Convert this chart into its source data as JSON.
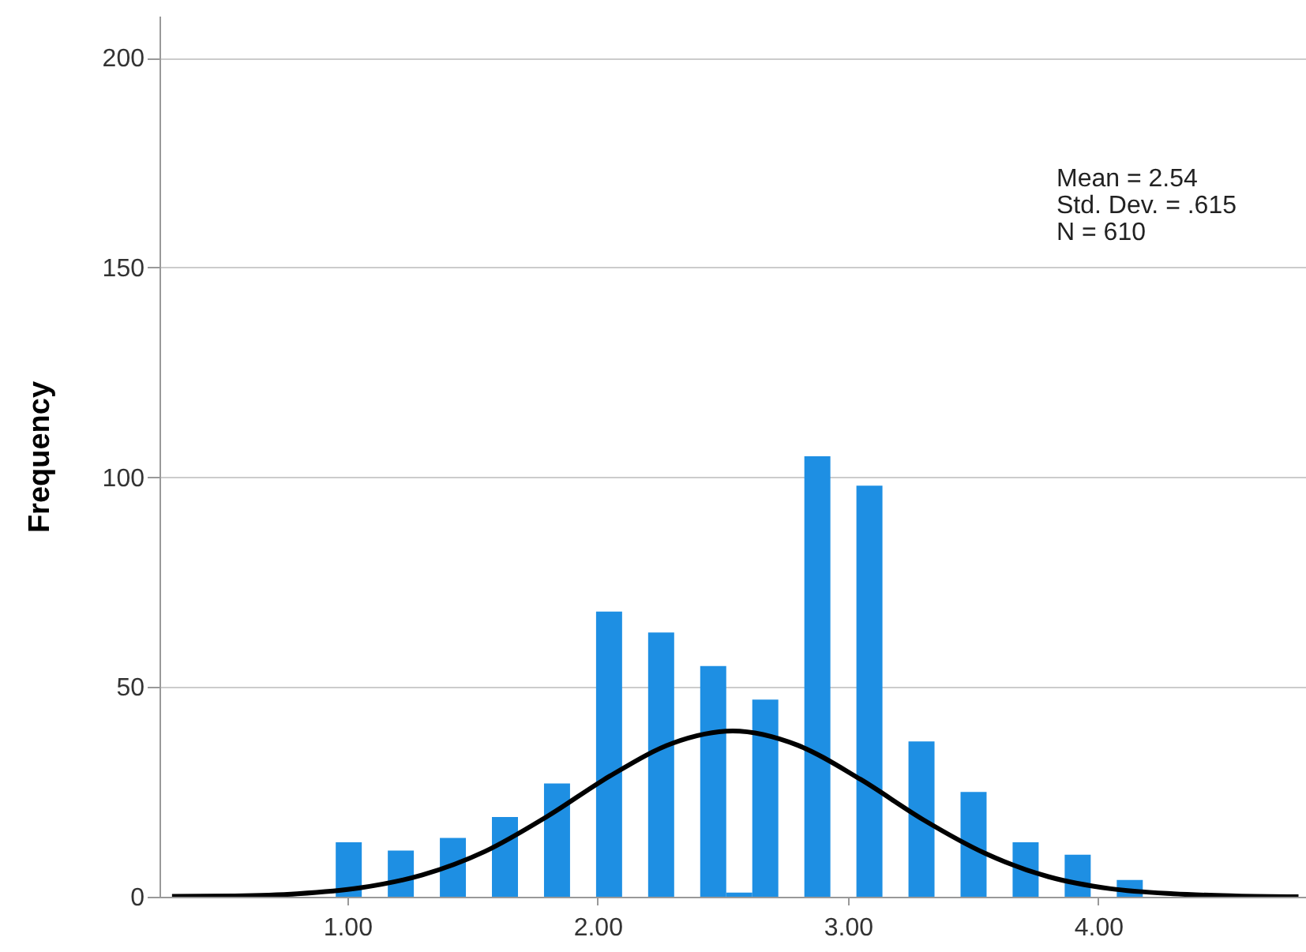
{
  "chart_data": {
    "type": "histogram",
    "ylabel": "Frequency",
    "bins": [
      0.954,
      1.058,
      1.162,
      1.266,
      1.37,
      1.474,
      1.578,
      1.682,
      1.786,
      1.89,
      1.994,
      2.098,
      2.202,
      2.306,
      2.41,
      2.514,
      2.618,
      2.722,
      2.826,
      2.93,
      3.034,
      3.138,
      3.242,
      3.346,
      3.45,
      3.554,
      3.658,
      3.762,
      3.866,
      3.97,
      4.074,
      4.178
    ],
    "values": [
      13,
      0,
      11,
      0,
      14,
      0,
      19,
      0,
      27,
      0,
      68,
      0,
      63,
      0,
      55,
      1,
      47,
      0,
      105,
      0,
      98,
      0,
      37,
      0,
      25,
      0,
      13,
      0,
      10,
      0,
      4
    ],
    "color": "#1e8fe3",
    "series": [
      {
        "type": "line",
        "color": "#000000",
        "x": [
          0.3,
          0.55,
          0.8,
          1.05,
          1.3,
          1.55,
          1.8,
          2.05,
          2.3,
          2.54,
          2.8,
          3.05,
          3.3,
          3.55,
          3.8,
          4.05,
          4.3,
          4.55,
          4.8
        ],
        "values": [
          0.1,
          0.2,
          0.7,
          2.1,
          5.2,
          10.8,
          19.2,
          28.8,
          36.6,
          39.5,
          36.1,
          28.0,
          18.4,
          10.3,
          4.8,
          1.9,
          0.7,
          0.2,
          0.0
        ]
      }
    ],
    "xlim": [
      0.25,
      4.83
    ],
    "xticks": [
      {
        "value": 1,
        "label": "1.00"
      },
      {
        "value": 2,
        "label": "2.00"
      },
      {
        "value": 3,
        "label": "3.00"
      },
      {
        "value": 4,
        "label": "4.00"
      }
    ],
    "ylim": [
      0,
      210
    ],
    "yticks": [
      0,
      50,
      100,
      150,
      200
    ],
    "grid": "y",
    "annotations": [
      "Mean = 2.54",
      "Std. Dev. = .615",
      "N = 610"
    ]
  }
}
